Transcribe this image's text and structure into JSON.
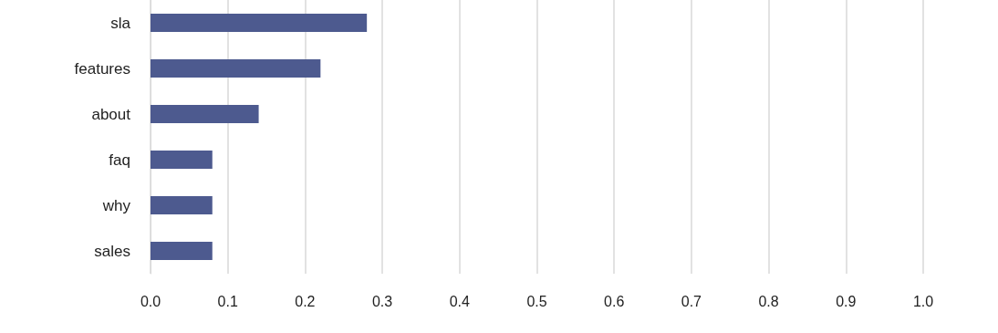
{
  "chart_data": {
    "type": "bar",
    "orientation": "horizontal",
    "categories": [
      "sla",
      "features",
      "about",
      "faq",
      "why",
      "sales"
    ],
    "values": [
      0.28,
      0.22,
      0.14,
      0.08,
      0.08,
      0.08
    ],
    "color": "#4d5a8f",
    "xlim": [
      0,
      1
    ],
    "xticks": [
      {
        "value": 0,
        "label": "0.0"
      },
      0.1,
      0.2,
      0.3,
      0.4,
      0.5,
      0.6,
      0.7,
      0.8,
      0.9,
      {
        "value": 1,
        "label": "1.0"
      }
    ],
    "grid": "x"
  }
}
